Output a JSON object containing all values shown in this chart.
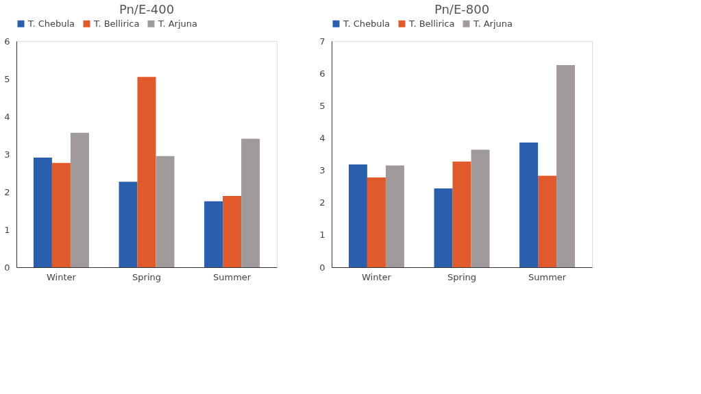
{
  "chart_data": [
    {
      "type": "bar",
      "title": "Pn/E-400",
      "categories": [
        "Winter",
        "Spring",
        "Summer"
      ],
      "ylim": [
        0,
        6
      ],
      "yticks": [
        0,
        1,
        2,
        3,
        4,
        5,
        6
      ],
      "grid": false,
      "legend": "top",
      "series": [
        {
          "name": "T. Chebula",
          "color": "#2a5fad",
          "values": [
            2.91,
            2.27,
            1.75
          ]
        },
        {
          "name": "T. Bellirica",
          "color": "#e05a2b",
          "values": [
            2.77,
            5.05,
            1.89
          ]
        },
        {
          "name": "T. Arjuna",
          "color": "#a09a9c",
          "values": [
            3.57,
            2.95,
            3.41
          ]
        }
      ]
    },
    {
      "type": "bar",
      "title": "Pn/E-800",
      "categories": [
        "Winter",
        "Spring",
        "Summer"
      ],
      "ylim": [
        0,
        7
      ],
      "yticks": [
        0,
        1,
        2,
        3,
        4,
        5,
        6,
        7
      ],
      "grid": false,
      "legend": "top",
      "series": [
        {
          "name": "T. Chebula",
          "color": "#2a5fad",
          "values": [
            3.18,
            2.44,
            3.86
          ]
        },
        {
          "name": "T. Bellirica",
          "color": "#e05a2b",
          "values": [
            2.78,
            3.27,
            2.83
          ]
        },
        {
          "name": "T. Arjuna",
          "color": "#a09a9c",
          "values": [
            3.15,
            3.64,
            6.26
          ]
        }
      ]
    }
  ]
}
